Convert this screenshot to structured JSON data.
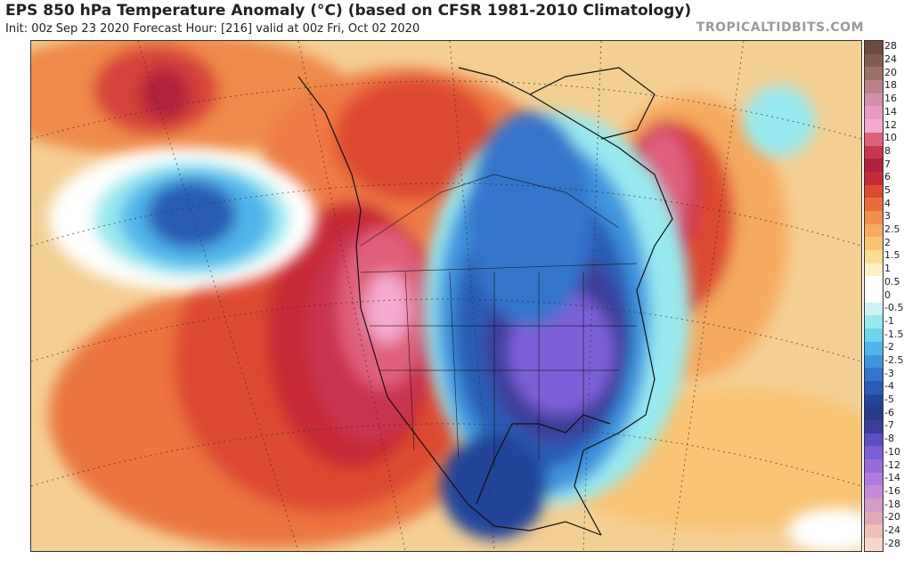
{
  "header": {
    "title": "EPS 850 hPa Temperature Anomaly (°C) (based on CFSR 1981-2010 Climatology)",
    "subtitle": "Init: 00z Sep 23 2020   Forecast Hour: [216]   valid at 00z Fri, Oct 02 2020",
    "brand": "TROPICALTIDBITS.COM"
  },
  "colorbar": {
    "levels": [
      "28",
      "24",
      "20",
      "18",
      "16",
      "14",
      "12",
      "10",
      "8",
      "7",
      "6",
      "5",
      "4",
      "3",
      "2.5",
      "2",
      "1.5",
      "1",
      "0.5",
      "0",
      "-0.5",
      "-1",
      "-1.5",
      "-2",
      "-2.5",
      "-3",
      "-4",
      "-5",
      "-6",
      "-7",
      "-8",
      "-10",
      "-12",
      "-14",
      "-16",
      "-18",
      "-20",
      "-24",
      "-28"
    ],
    "colors": [
      "#6e4a3a",
      "#855b4f",
      "#9c6e66",
      "#b8848a",
      "#d28fa9",
      "#e79ac3",
      "#f4a9cf",
      "#e0617c",
      "#c9354f",
      "#b1203a",
      "#c62b35",
      "#dc4a32",
      "#ea6c3c",
      "#f38e4c",
      "#f6aa5e",
      "#f8c473",
      "#fbdd93",
      "#fdf0c4",
      "#ffffff",
      "#ffffff",
      "#ccf2f6",
      "#98e9ef",
      "#6ed3ef",
      "#4fb4ea",
      "#3f94df",
      "#3474cc",
      "#2a5cb6",
      "#22459a",
      "#2a3a8a",
      "#3a3e9a",
      "#5a50c4",
      "#7b5ed8",
      "#9a6ad8",
      "#b27ade",
      "#c88ad8",
      "#d49ac8",
      "#e0a8b8",
      "#f0c0b4",
      "#f6d6c6"
    ],
    "unit": "°C"
  },
  "map": {
    "region": "North America",
    "features": [
      "country-borders",
      "state-borders",
      "coastlines",
      "lat-lon-grid"
    ],
    "anomaly_regions": [
      {
        "name": "Western US heat",
        "approx_anomaly": 10
      },
      {
        "name": "Central/Eastern US cold",
        "approx_anomaly": -8
      },
      {
        "name": "Gulf of Alaska cold",
        "approx_anomaly": -4
      },
      {
        "name": "Labrador Sea warm",
        "approx_anomaly": 8
      }
    ]
  }
}
